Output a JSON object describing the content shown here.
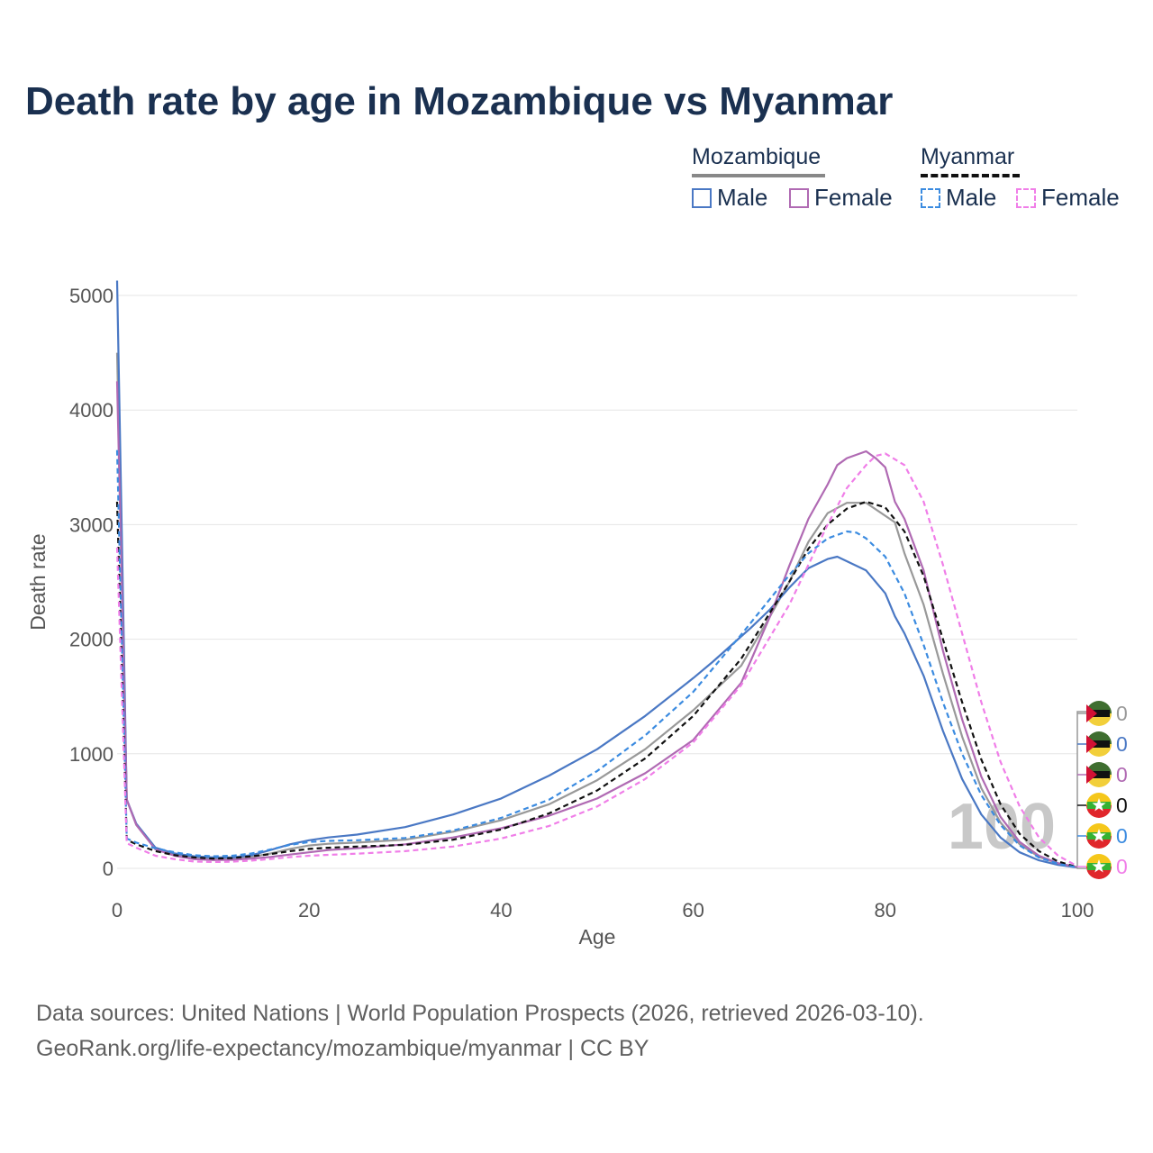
{
  "title": "Death rate by age in Mozambique vs Myanmar",
  "legend": {
    "groups": [
      {
        "name": "Mozambique",
        "color": "#888888",
        "dash": "solid",
        "items": [
          {
            "label": "Male",
            "color": "#4a78c4"
          },
          {
            "label": "Female",
            "color": "#b06ab3"
          }
        ]
      },
      {
        "name": "Myanmar",
        "color": "#111111",
        "dash": "dashed",
        "items": [
          {
            "label": "Male",
            "color": "#3b8be0"
          },
          {
            "label": "Female",
            "color": "#f07ee8"
          }
        ]
      }
    ]
  },
  "footer": {
    "line1": "Data sources: United Nations | World Population Prospects (2026, retrieved 2026-03-10).",
    "line2": "GeoRank.org/life-expectancy/mozambique/myanmar | CC BY"
  },
  "year_watermark": "100",
  "chart_data": {
    "type": "line",
    "title": "Death rate by age in Mozambique vs Myanmar",
    "xlabel": "Age",
    "ylabel": "Death rate",
    "xlim": [
      0,
      100
    ],
    "ylim": [
      0,
      5000
    ],
    "xticks": [
      0,
      20,
      40,
      60,
      80,
      100
    ],
    "yticks": [
      0,
      1000,
      2000,
      3000,
      4000,
      5000
    ],
    "series": [
      {
        "name": "Mozambique Total",
        "color": "#999999",
        "dash": "solid",
        "points": [
          [
            0,
            4500
          ],
          [
            1,
            600
          ],
          [
            2,
            380
          ],
          [
            4,
            170
          ],
          [
            6,
            120
          ],
          [
            8,
            95
          ],
          [
            10,
            85
          ],
          [
            12,
            85
          ],
          [
            14,
            100
          ],
          [
            16,
            130
          ],
          [
            18,
            170
          ],
          [
            20,
            200
          ],
          [
            22,
            215
          ],
          [
            25,
            225
          ],
          [
            30,
            250
          ],
          [
            35,
            320
          ],
          [
            40,
            420
          ],
          [
            45,
            560
          ],
          [
            50,
            770
          ],
          [
            55,
            1040
          ],
          [
            60,
            1380
          ],
          [
            65,
            1770
          ],
          [
            68,
            2200
          ],
          [
            70,
            2500
          ],
          [
            72,
            2850
          ],
          [
            74,
            3100
          ],
          [
            76,
            3190
          ],
          [
            78,
            3190
          ],
          [
            81,
            3020
          ],
          [
            82,
            2750
          ],
          [
            84,
            2300
          ],
          [
            86,
            1700
          ],
          [
            88,
            1150
          ],
          [
            90,
            700
          ],
          [
            92,
            400
          ],
          [
            94,
            210
          ],
          [
            96,
            100
          ],
          [
            98,
            45
          ],
          [
            100,
            10
          ]
        ]
      },
      {
        "name": "Mozambique Male",
        "color": "#4a78c4",
        "dash": "solid",
        "points": [
          [
            0,
            5130
          ],
          [
            1,
            600
          ],
          [
            2,
            390
          ],
          [
            4,
            180
          ],
          [
            6,
            130
          ],
          [
            8,
            105
          ],
          [
            10,
            95
          ],
          [
            12,
            95
          ],
          [
            14,
            115
          ],
          [
            16,
            160
          ],
          [
            18,
            210
          ],
          [
            20,
            245
          ],
          [
            22,
            270
          ],
          [
            25,
            295
          ],
          [
            30,
            360
          ],
          [
            35,
            470
          ],
          [
            40,
            610
          ],
          [
            45,
            810
          ],
          [
            50,
            1040
          ],
          [
            55,
            1330
          ],
          [
            60,
            1660
          ],
          [
            62,
            1800
          ],
          [
            64,
            1950
          ],
          [
            66,
            2100
          ],
          [
            68,
            2260
          ],
          [
            70,
            2450
          ],
          [
            72,
            2620
          ],
          [
            74,
            2700
          ],
          [
            75,
            2720
          ],
          [
            78,
            2600
          ],
          [
            80,
            2400
          ],
          [
            81,
            2200
          ],
          [
            82,
            2050
          ],
          [
            84,
            1680
          ],
          [
            86,
            1200
          ],
          [
            88,
            780
          ],
          [
            90,
            470
          ],
          [
            92,
            270
          ],
          [
            94,
            140
          ],
          [
            96,
            70
          ],
          [
            98,
            30
          ],
          [
            100,
            8
          ]
        ]
      },
      {
        "name": "Mozambique Female",
        "color": "#b06ab3",
        "dash": "solid",
        "points": [
          [
            0,
            4250
          ],
          [
            1,
            600
          ],
          [
            2,
            380
          ],
          [
            4,
            165
          ],
          [
            6,
            110
          ],
          [
            8,
            80
          ],
          [
            10,
            72
          ],
          [
            12,
            75
          ],
          [
            14,
            85
          ],
          [
            16,
            100
          ],
          [
            18,
            120
          ],
          [
            20,
            140
          ],
          [
            22,
            160
          ],
          [
            25,
            175
          ],
          [
            30,
            210
          ],
          [
            35,
            270
          ],
          [
            40,
            350
          ],
          [
            45,
            460
          ],
          [
            50,
            610
          ],
          [
            55,
            830
          ],
          [
            60,
            1120
          ],
          [
            65,
            1620
          ],
          [
            68,
            2200
          ],
          [
            70,
            2640
          ],
          [
            72,
            3050
          ],
          [
            74,
            3350
          ],
          [
            75,
            3520
          ],
          [
            76,
            3580
          ],
          [
            78,
            3640
          ],
          [
            79,
            3580
          ],
          [
            80,
            3500
          ],
          [
            81,
            3200
          ],
          [
            82,
            3050
          ],
          [
            84,
            2600
          ],
          [
            86,
            1900
          ],
          [
            88,
            1300
          ],
          [
            90,
            800
          ],
          [
            92,
            450
          ],
          [
            94,
            230
          ],
          [
            96,
            110
          ],
          [
            98,
            45
          ],
          [
            100,
            10
          ]
        ]
      },
      {
        "name": "Myanmar Total",
        "color": "#111111",
        "dash": "dashed",
        "points": [
          [
            0,
            3200
          ],
          [
            1,
            250
          ],
          [
            2,
            210
          ],
          [
            4,
            150
          ],
          [
            6,
            115
          ],
          [
            8,
            95
          ],
          [
            10,
            85
          ],
          [
            12,
            90
          ],
          [
            14,
            105
          ],
          [
            16,
            125
          ],
          [
            18,
            150
          ],
          [
            20,
            170
          ],
          [
            22,
            180
          ],
          [
            25,
            190
          ],
          [
            30,
            205
          ],
          [
            35,
            250
          ],
          [
            40,
            340
          ],
          [
            45,
            480
          ],
          [
            50,
            680
          ],
          [
            55,
            960
          ],
          [
            60,
            1330
          ],
          [
            65,
            1830
          ],
          [
            70,
            2500
          ],
          [
            72,
            2790
          ],
          [
            74,
            3000
          ],
          [
            76,
            3140
          ],
          [
            78,
            3200
          ],
          [
            80,
            3150
          ],
          [
            82,
            2940
          ],
          [
            84,
            2550
          ],
          [
            86,
            2000
          ],
          [
            88,
            1450
          ],
          [
            90,
            950
          ],
          [
            92,
            560
          ],
          [
            94,
            300
          ],
          [
            96,
            150
          ],
          [
            98,
            60
          ],
          [
            100,
            10
          ]
        ]
      },
      {
        "name": "Myanmar Male",
        "color": "#3b8be0",
        "dash": "dashed",
        "points": [
          [
            0,
            3650
          ],
          [
            1,
            260
          ],
          [
            2,
            225
          ],
          [
            4,
            175
          ],
          [
            6,
            140
          ],
          [
            8,
            115
          ],
          [
            10,
            105
          ],
          [
            12,
            110
          ],
          [
            14,
            130
          ],
          [
            16,
            165
          ],
          [
            18,
            205
          ],
          [
            20,
            230
          ],
          [
            22,
            240
          ],
          [
            25,
            245
          ],
          [
            30,
            265
          ],
          [
            35,
            330
          ],
          [
            40,
            440
          ],
          [
            45,
            600
          ],
          [
            50,
            850
          ],
          [
            55,
            1160
          ],
          [
            60,
            1540
          ],
          [
            65,
            2040
          ],
          [
            70,
            2560
          ],
          [
            72,
            2750
          ],
          [
            74,
            2880
          ],
          [
            76,
            2940
          ],
          [
            77,
            2930
          ],
          [
            78,
            2880
          ],
          [
            80,
            2720
          ],
          [
            82,
            2400
          ],
          [
            84,
            1950
          ],
          [
            86,
            1450
          ],
          [
            88,
            1000
          ],
          [
            90,
            640
          ],
          [
            92,
            380
          ],
          [
            94,
            200
          ],
          [
            96,
            95
          ],
          [
            98,
            40
          ],
          [
            100,
            8
          ]
        ]
      },
      {
        "name": "Myanmar Female",
        "color": "#f07ee8",
        "dash": "dashed",
        "points": [
          [
            0,
            2800
          ],
          [
            1,
            220
          ],
          [
            2,
            180
          ],
          [
            4,
            110
          ],
          [
            6,
            80
          ],
          [
            8,
            60
          ],
          [
            10,
            55
          ],
          [
            12,
            58
          ],
          [
            14,
            68
          ],
          [
            16,
            82
          ],
          [
            18,
            98
          ],
          [
            20,
            110
          ],
          [
            22,
            118
          ],
          [
            25,
            128
          ],
          [
            30,
            150
          ],
          [
            35,
            190
          ],
          [
            40,
            260
          ],
          [
            45,
            370
          ],
          [
            50,
            540
          ],
          [
            55,
            780
          ],
          [
            60,
            1100
          ],
          [
            65,
            1600
          ],
          [
            70,
            2300
          ],
          [
            72,
            2650
          ],
          [
            74,
            3000
          ],
          [
            76,
            3320
          ],
          [
            78,
            3520
          ],
          [
            79,
            3600
          ],
          [
            80,
            3620
          ],
          [
            82,
            3520
          ],
          [
            84,
            3200
          ],
          [
            86,
            2650
          ],
          [
            88,
            2050
          ],
          [
            90,
            1450
          ],
          [
            92,
            930
          ],
          [
            94,
            540
          ],
          [
            96,
            270
          ],
          [
            98,
            110
          ],
          [
            100,
            20
          ]
        ]
      }
    ],
    "end_values": [
      {
        "label": "0",
        "flag": "mozambique-flag",
        "color": "#999999"
      },
      {
        "label": "0",
        "flag": "mozambique-flag",
        "color": "#4a78c4"
      },
      {
        "label": "0",
        "flag": "mozambique-flag",
        "color": "#b06ab3"
      },
      {
        "label": "0",
        "flag": "myanmar-flag",
        "color": "#111111"
      },
      {
        "label": "0",
        "flag": "myanmar-flag",
        "color": "#3b8be0"
      },
      {
        "label": "0",
        "flag": "myanmar-flag",
        "color": "#f07ee8"
      }
    ]
  }
}
